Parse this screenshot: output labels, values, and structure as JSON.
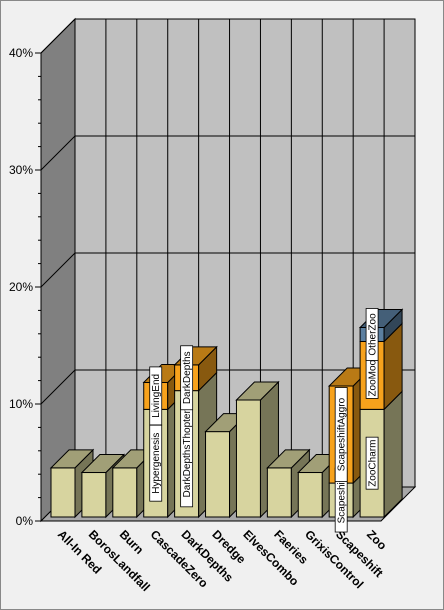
{
  "chart_data": {
    "type": "bar",
    "stacked": true,
    "three_d": true,
    "title": "",
    "xlabel": "",
    "ylabel": "",
    "ylim": [
      0,
      40
    ],
    "yticks": [
      0,
      10,
      20,
      30,
      40
    ],
    "ytick_labels": [
      "0%",
      "10%",
      "20%",
      "30%",
      "40%"
    ],
    "grid": true,
    "legend": "none",
    "categories": [
      "All-In Red",
      "BorosLandfall",
      "Burn",
      "CascadeZero",
      "DarkDepths",
      "Dredge",
      "ElvesCombo",
      "Faeries",
      "GrixisControl",
      "Scapeshift",
      "Zoo"
    ],
    "series": [
      {
        "color": "#d7d49f",
        "values": [
          4.2,
          3.8,
          4.2,
          9.2,
          10.8,
          7.3,
          10.0,
          4.2,
          3.8,
          2.9,
          9.2
        ],
        "labels": [
          "",
          "",
          "",
          "Hypergenesis",
          "DarkDepthsThopter",
          "",
          "",
          "",
          "",
          "Scapeshift",
          "ZooCharm"
        ]
      },
      {
        "color": "#f7a21c",
        "values": [
          0,
          0,
          0,
          2.3,
          2.2,
          0,
          0,
          0,
          0,
          8.3,
          5.8
        ],
        "labels": [
          "",
          "",
          "",
          "LivingEnd",
          "DarkDepths",
          "",
          "",
          "",
          "",
          "ScapeshiftAggro",
          "ZooMoon"
        ]
      },
      {
        "color": "#5b7fa0",
        "values": [
          0,
          0,
          0,
          0,
          0,
          0,
          0,
          0,
          0,
          0,
          1.2
        ],
        "labels": [
          "",
          "",
          "",
          "",
          "",
          "",
          "",
          "",
          "",
          "",
          "OtherZoo"
        ]
      }
    ]
  }
}
